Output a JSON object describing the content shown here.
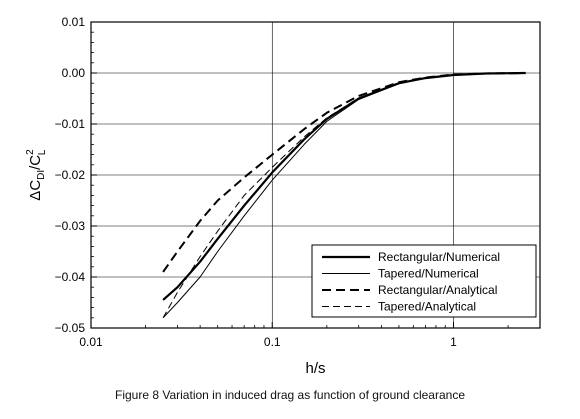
{
  "caption": "Figure 8 Variation in induced drag as function of ground clearance",
  "chart_data": {
    "type": "line",
    "xlabel": "h/s",
    "ylabel": "ΔC_DI/C_L²",
    "ylabel_parts": {
      "delta": "ΔC",
      "sub": "DI",
      "slash": "/C",
      "sup": "2",
      "sub2": "L"
    },
    "xscale": "log",
    "xlim": [
      0.01,
      3
    ],
    "ylim": [
      -0.05,
      0.01
    ],
    "grid": true,
    "legend_position": "lower-right",
    "x_ticks": [
      {
        "value": 0.01,
        "label": "0.01"
      },
      {
        "value": 0.1,
        "label": "0.1"
      },
      {
        "value": 1,
        "label": "1"
      }
    ],
    "y_ticks": [
      {
        "value": 0.01,
        "label": "0.01"
      },
      {
        "value": 0.0,
        "label": "0.00"
      },
      {
        "value": -0.01,
        "label": "−0.01"
      },
      {
        "value": -0.02,
        "label": "−0.02"
      },
      {
        "value": -0.03,
        "label": "−0.03"
      },
      {
        "value": -0.04,
        "label": "−0.04"
      },
      {
        "value": -0.05,
        "label": "−0.05"
      }
    ],
    "series": [
      {
        "name": "Rectangular/Numerical",
        "style": "thick-solid",
        "x": [
          0.025,
          0.03,
          0.04,
          0.05,
          0.07,
          0.1,
          0.15,
          0.2,
          0.3,
          0.5,
          0.7,
          1.0,
          1.5,
          2.5
        ],
        "y": [
          -0.0445,
          -0.042,
          -0.037,
          -0.0325,
          -0.026,
          -0.0195,
          -0.013,
          -0.009,
          -0.005,
          -0.002,
          -0.001,
          -0.0004,
          -0.0001,
          0.0
        ]
      },
      {
        "name": "Tapered/Numerical",
        "style": "thin-solid",
        "x": [
          0.025,
          0.03,
          0.04,
          0.05,
          0.07,
          0.1,
          0.15,
          0.2,
          0.3,
          0.5,
          0.7,
          1.0,
          1.5,
          2.5
        ],
        "y": [
          -0.048,
          -0.045,
          -0.04,
          -0.035,
          -0.028,
          -0.021,
          -0.014,
          -0.0095,
          -0.0052,
          -0.0021,
          -0.001,
          -0.0004,
          -0.0001,
          0.0
        ]
      },
      {
        "name": "Rectangular/Analytical",
        "style": "thick-dashed",
        "x": [
          0.025,
          0.03,
          0.04,
          0.05,
          0.07,
          0.1,
          0.15,
          0.2,
          0.3,
          0.5,
          0.7,
          1.0,
          1.5,
          2.5
        ],
        "y": [
          -0.039,
          -0.035,
          -0.029,
          -0.025,
          -0.0205,
          -0.016,
          -0.011,
          -0.0078,
          -0.0045,
          -0.0018,
          -0.0009,
          -0.0003,
          -0.0001,
          0.0
        ]
      },
      {
        "name": "Tapered/Analytical",
        "style": "thin-dashed",
        "x": [
          0.025,
          0.03,
          0.04,
          0.05,
          0.07,
          0.1,
          0.15,
          0.2,
          0.3,
          0.5,
          0.7,
          1.0,
          1.5,
          2.5
        ],
        "y": [
          -0.048,
          -0.043,
          -0.036,
          -0.031,
          -0.024,
          -0.0185,
          -0.0125,
          -0.0088,
          -0.0049,
          -0.0019,
          -0.0009,
          -0.0003,
          -0.0001,
          0.0
        ]
      }
    ]
  }
}
